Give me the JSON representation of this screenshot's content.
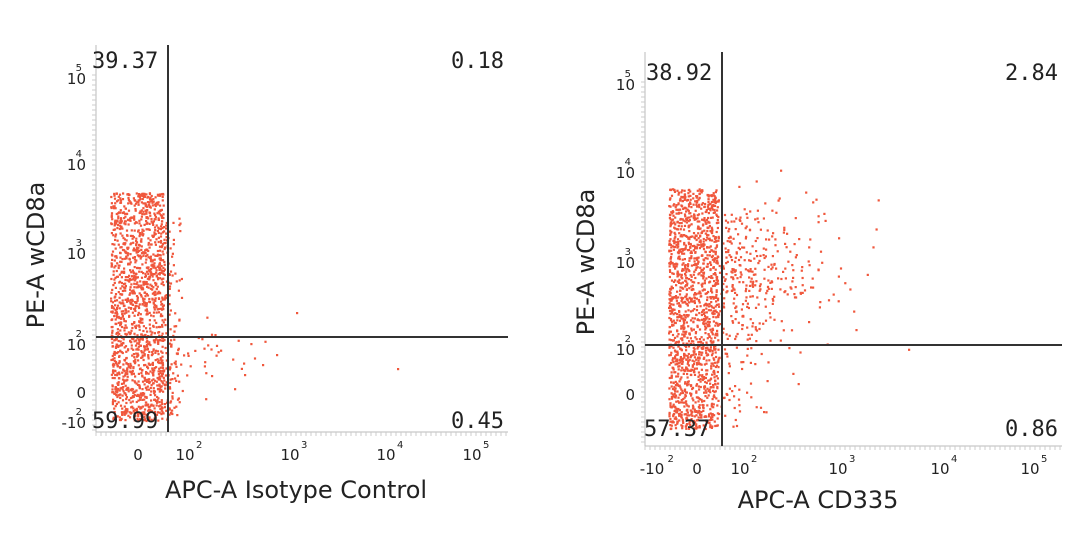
{
  "chart_data": [
    {
      "type": "scatter",
      "xlabel": "APC-A Isotype Control",
      "ylabel": "PE-A wCD8a",
      "x_ticks": [
        {
          "base": "0",
          "exp": ""
        },
        {
          "base": "10",
          "exp": "2"
        },
        {
          "base": "10",
          "exp": "3"
        },
        {
          "base": "10",
          "exp": "4"
        },
        {
          "base": "10",
          "exp": "5"
        }
      ],
      "y_ticks": [
        {
          "base": "-10",
          "exp": "2"
        },
        {
          "base": "0",
          "exp": ""
        },
        {
          "base": "10",
          "exp": "2"
        },
        {
          "base": "10",
          "exp": "3"
        },
        {
          "base": "10",
          "exp": "4"
        },
        {
          "base": "10",
          "exp": "5"
        }
      ],
      "quadrants": {
        "top_left": "39.37",
        "top_right": "0.18",
        "bottom_left": "59.99",
        "bottom_right": "0.45"
      },
      "point_color": "#f0573c"
    },
    {
      "type": "scatter",
      "xlabel": "APC-A CD335",
      "ylabel": "PE-A wCD8a",
      "x_ticks": [
        {
          "base": "-10",
          "exp": "2"
        },
        {
          "base": "0",
          "exp": ""
        },
        {
          "base": "10",
          "exp": "2"
        },
        {
          "base": "10",
          "exp": "3"
        },
        {
          "base": "10",
          "exp": "4"
        },
        {
          "base": "10",
          "exp": "5"
        }
      ],
      "y_ticks": [
        {
          "base": "0",
          "exp": ""
        },
        {
          "base": "10",
          "exp": "2"
        },
        {
          "base": "10",
          "exp": "3"
        },
        {
          "base": "10",
          "exp": "4"
        },
        {
          "base": "10",
          "exp": "5"
        }
      ],
      "quadrants": {
        "top_left": "38.92",
        "top_right": "2.84",
        "bottom_left": "57.37",
        "bottom_right": "0.86"
      },
      "point_color": "#f0573c"
    }
  ]
}
